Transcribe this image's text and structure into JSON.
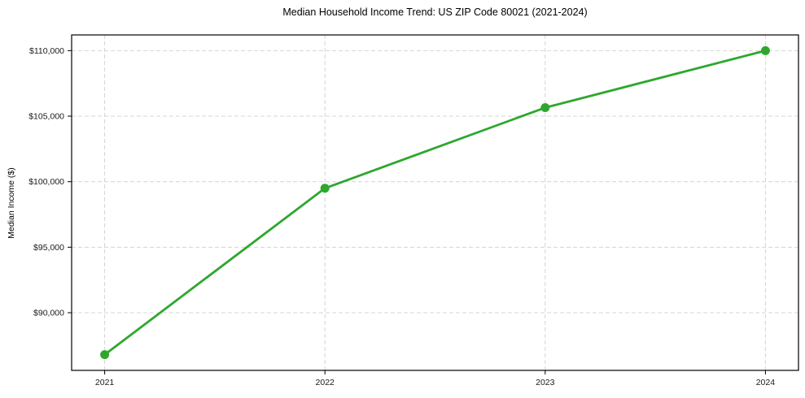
{
  "chart_data": {
    "type": "line",
    "title": "Median Household Income Trend: US ZIP Code 80021 (2021-2024)",
    "xlabel": "",
    "ylabel": "Median Income ($)",
    "x": [
      2021,
      2022,
      2023,
      2024
    ],
    "x_tick_labels": [
      "2021",
      "2022",
      "2023",
      "2024"
    ],
    "series": [
      {
        "name": "Median Household Income",
        "values": [
          86800,
          99500,
          105650,
          110000
        ],
        "color": "#2ea72e",
        "marker": "circle",
        "marker_radius": 5.5,
        "line_width": 2.8
      }
    ],
    "y_ticks": [
      90000,
      95000,
      100000,
      105000,
      110000
    ],
    "y_tick_labels": [
      "$90,000",
      "$95,000",
      "$100,000",
      "$105,000",
      "$110,000"
    ],
    "xlim": [
      2020.85,
      2024.15
    ],
    "ylim": [
      85600,
      111200
    ],
    "grid": "both",
    "grid_style": "dashed",
    "legend": "none",
    "colors": {
      "background": "#ffffff",
      "grid": "#d4d4d4",
      "axis_frame": "#000000",
      "tick": "#000000",
      "tick_label": "#1a1a1a",
      "title": "#000000"
    }
  }
}
